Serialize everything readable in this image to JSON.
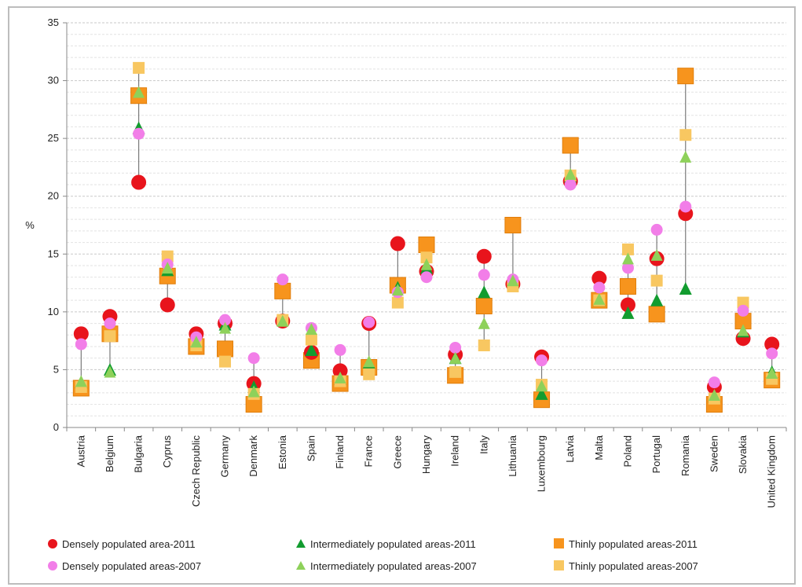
{
  "chart_data": {
    "type": "scatter",
    "title": "",
    "xlabel": "",
    "ylabel": "%",
    "ylim": [
      0,
      35
    ],
    "yticks": [
      0,
      5,
      10,
      15,
      20,
      25,
      30,
      35
    ],
    "grid": "horizontal-dashed",
    "legend_position": "bottom",
    "categories": [
      "Austria",
      "Belgium",
      "Bulgaria",
      "Cyprus",
      "Czech Republic",
      "Germany",
      "Denmark",
      "Estonia",
      "Spain",
      "Finland",
      "France",
      "Greece",
      "Hungary",
      "Ireland",
      "Italy",
      "Lithuania",
      "Luxembourg",
      "Latvia",
      "Malta",
      "Poland",
      "Portugal",
      "Romania",
      "Sweden",
      "Slovakia",
      "United Kingdom"
    ],
    "series": [
      {
        "name": "Densely populated area-2011",
        "marker": "circle",
        "size": "large",
        "color": "#e8141c",
        "values": [
          8.1,
          9.6,
          21.2,
          10.6,
          8.1,
          9.0,
          3.8,
          9.2,
          6.5,
          4.9,
          9.0,
          15.9,
          13.5,
          6.3,
          14.8,
          12.4,
          6.1,
          21.3,
          12.9,
          10.6,
          14.6,
          18.5,
          3.5,
          7.7,
          7.2
        ]
      },
      {
        "name": "Intermediately populated areas-2011",
        "marker": "triangle",
        "size": "large",
        "color": "#129c2f",
        "values": [
          3.8,
          4.9,
          25.8,
          13.5,
          7.4,
          8.8,
          3.4,
          9.2,
          6.6,
          4.1,
          5.5,
          12.0,
          13.7,
          5.9,
          11.6,
          12.5,
          2.8,
          21.6,
          10.9,
          9.8,
          10.9,
          11.9,
          2.6,
          8.2,
          4.7
        ]
      },
      {
        "name": "Thinly populated areas-2011",
        "marker": "square",
        "size": "large",
        "color": "#f7941d",
        "values": [
          3.4,
          8.1,
          28.7,
          13.1,
          7.0,
          6.8,
          2.0,
          11.8,
          5.8,
          3.8,
          5.2,
          12.3,
          15.8,
          4.5,
          10.5,
          17.5,
          2.4,
          24.4,
          11.0,
          12.2,
          9.8,
          30.4,
          2.0,
          9.2,
          4.1
        ]
      },
      {
        "name": "Densely populated areas-2007",
        "marker": "circle",
        "size": "small",
        "color": "#f27ee8",
        "values": [
          7.2,
          9.0,
          25.4,
          14.1,
          7.8,
          9.3,
          6.0,
          12.8,
          8.6,
          6.7,
          9.1,
          11.7,
          13.0,
          6.9,
          13.2,
          12.8,
          5.8,
          21.0,
          12.1,
          13.8,
          17.1,
          19.1,
          3.9,
          10.1,
          6.4
        ]
      },
      {
        "name": "Intermediately populated areas-2007",
        "marker": "triangle",
        "size": "small",
        "color": "#8ed15a",
        "values": [
          3.9,
          4.7,
          28.9,
          13.7,
          7.3,
          8.5,
          3.0,
          9.1,
          8.4,
          4.2,
          5.6,
          11.8,
          14.0,
          5.9,
          8.9,
          12.6,
          3.5,
          21.8,
          11.0,
          14.5,
          14.8,
          23.3,
          2.7,
          8.3,
          4.6
        ]
      },
      {
        "name": "Thinly populated areas-2007",
        "marker": "square",
        "size": "small",
        "color": "#f8c761",
        "values": [
          3.5,
          7.9,
          31.1,
          14.8,
          7.1,
          5.7,
          2.9,
          9.3,
          7.6,
          4.0,
          4.6,
          10.8,
          14.7,
          4.8,
          7.1,
          12.2,
          3.7,
          21.8,
          11.0,
          15.4,
          12.7,
          25.3,
          2.5,
          10.8,
          4.2
        ]
      }
    ]
  }
}
